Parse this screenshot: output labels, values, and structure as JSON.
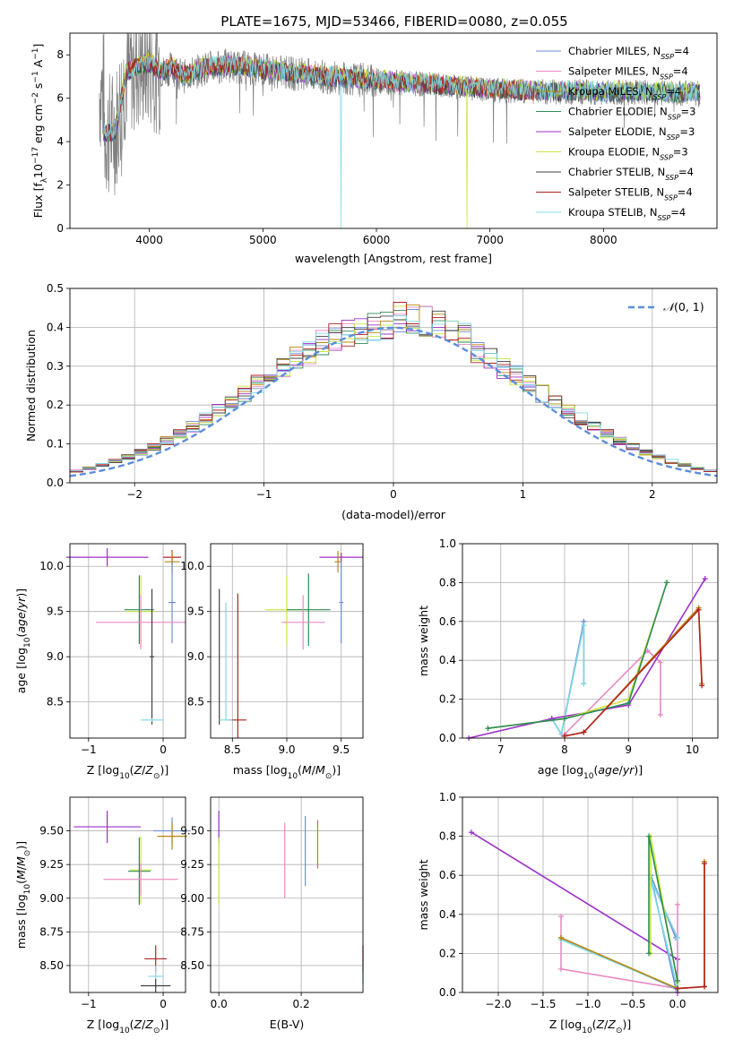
{
  "figure": {
    "title": "PLATE=1675, MJD=53466, FIBERID=0080, z=0.055"
  },
  "series_style": [
    {
      "name": "Chabrier MILES",
      "nssp": "4",
      "color": "#6b8fd6"
    },
    {
      "name": "Salpeter MILES",
      "nssp": "4",
      "color": "#e78ac3"
    },
    {
      "name": "Kroupa MILES",
      "nssp": "4",
      "color": "#b8860b"
    },
    {
      "name": "Chabrier ELODIE",
      "nssp": "3",
      "color": "#2e8b57"
    },
    {
      "name": "Salpeter ELODIE",
      "nssp": "3",
      "color": "#9b30c8"
    },
    {
      "name": "Kroupa ELODIE",
      "nssp": "3",
      "color": "#c8e63c"
    },
    {
      "name": "Chabrier STELIB",
      "nssp": "4",
      "color": "#404040"
    },
    {
      "name": "Salpeter STELIB",
      "nssp": "4",
      "color": "#b22222"
    },
    {
      "name": "Kroupa STELIB",
      "nssp": "4",
      "color": "#7fd8e6"
    }
  ],
  "chart_data": [
    {
      "id": "spectrum",
      "type": "line",
      "title": "PLATE=1675, MJD=53466, FIBERID=0080, z=0.055",
      "xlabel": "wavelength [Angstrom, rest frame]",
      "ylabel": "Flux [f_λ 10^-17 erg cm^-2 s^-1 A^-1]",
      "xlim": [
        3300,
        9000
      ],
      "ylim": [
        0,
        9
      ],
      "xticks": [
        4000,
        5000,
        6000,
        7000,
        8000
      ],
      "yticks": [
        0,
        2,
        4,
        6,
        8
      ],
      "grid": false,
      "legend_placement": "upper-right",
      "data_color": "#808080",
      "model_envelope": {
        "x": [
          3600,
          3700,
          3800,
          3900,
          4000,
          4100,
          4200,
          4300,
          4500,
          4700,
          5000,
          5500,
          6000,
          6500,
          7000,
          7400
        ],
        "y": [
          4.3,
          4.5,
          7.2,
          7.4,
          7.6,
          7.2,
          7.4,
          7.0,
          7.4,
          7.5,
          7.3,
          7.0,
          6.8,
          6.6,
          6.4,
          6.3
        ]
      }
    },
    {
      "id": "residuals",
      "type": "line",
      "xlabel": "(data-model)/error",
      "ylabel": "Normed distribution",
      "xlim": [
        -2.5,
        2.5
      ],
      "ylim": [
        0,
        0.5
      ],
      "xticks": [
        -2,
        -1,
        0,
        1,
        2
      ],
      "yticks": [
        0.0,
        0.1,
        0.2,
        0.3,
        0.4,
        0.5
      ],
      "grid": true,
      "legend_placement": "upper-right",
      "normal_label": "N(0,1)",
      "normal_color": "#5b8ddb"
    },
    {
      "id": "age_vs_Z",
      "type": "scatter",
      "xlabel": "Z [log10(Z/Z⊙)]",
      "ylabel": "age  [log10(age/yr)]",
      "xlim": [
        -1.25,
        0.3
      ],
      "ylim": [
        8.1,
        10.25
      ],
      "xticks": [
        -1,
        0
      ],
      "yticks": [
        8.5,
        9.0,
        9.5,
        10.0
      ],
      "grid": true,
      "points": [
        {
          "series": 4,
          "x": -0.75,
          "y": 10.1,
          "xerr": 0.55,
          "yerr": 0.1
        },
        {
          "series": 7,
          "x": 0.12,
          "y": 10.1,
          "xerr": 0.12,
          "yerr": 0.08
        },
        {
          "series": 2,
          "x": 0.12,
          "y": 10.05,
          "xerr": 0.1,
          "yerr": 0.12
        },
        {
          "series": 0,
          "x": 0.12,
          "y": 9.6,
          "xerr": 0.05,
          "yerr": 0.45
        },
        {
          "series": 5,
          "x": -0.3,
          "y": 9.5,
          "xerr": 0.2,
          "yerr": 0.4
        },
        {
          "series": 3,
          "x": -0.32,
          "y": 9.52,
          "xerr": 0.2,
          "yerr": 0.38
        },
        {
          "series": 1,
          "x": -0.3,
          "y": 9.38,
          "xerr": 0.6,
          "yerr": 0.3
        },
        {
          "series": 6,
          "x": -0.15,
          "y": 9.0,
          "xerr": 0.03,
          "yerr": 0.75
        },
        {
          "series": 8,
          "x": -0.15,
          "y": 8.3,
          "xerr": 0.15,
          "yerr": 0.02
        }
      ]
    },
    {
      "id": "age_vs_mass",
      "type": "scatter",
      "xlabel": "mass [log10(M/M⊙)]",
      "ylabel": "",
      "xlim": [
        8.3,
        9.7
      ],
      "ylim": [
        8.1,
        10.25
      ],
      "xticks": [
        8.5,
        9.0,
        9.5
      ],
      "yticks": [
        8.5,
        9.0,
        9.5,
        10.0
      ],
      "grid": true,
      "points": [
        {
          "series": 6,
          "x": 8.38,
          "y": 9.0,
          "xerr": 0.0,
          "yerr": 0.75
        },
        {
          "series": 8,
          "x": 8.44,
          "y": 8.95,
          "xerr": 0.0,
          "yerr": 0.65
        },
        {
          "series": 7,
          "x": 8.55,
          "y": 8.3,
          "xerr": 0.08,
          "yerr": 0.0
        },
        {
          "series": 8,
          "x": 8.44,
          "y": 8.3,
          "xerr": 0.06,
          "yerr": 0.0
        },
        {
          "series": 7,
          "x": 8.55,
          "y": 8.9,
          "xerr": 0.0,
          "yerr": 0.8
        },
        {
          "series": 5,
          "x": 9.0,
          "y": 9.52,
          "xerr": 0.2,
          "yerr": 0.38
        },
        {
          "series": 3,
          "x": 9.2,
          "y": 9.52,
          "xerr": 0.2,
          "yerr": 0.4
        },
        {
          "series": 1,
          "x": 9.15,
          "y": 9.38,
          "xerr": 0.2,
          "yerr": 0.3
        },
        {
          "series": 4,
          "x": 9.5,
          "y": 10.1,
          "xerr": 0.2,
          "yerr": 0.05
        },
        {
          "series": 0,
          "x": 9.5,
          "y": 9.6,
          "xerr": 0.02,
          "yerr": 0.45
        },
        {
          "series": 2,
          "x": 9.47,
          "y": 10.05,
          "xerr": 0.03,
          "yerr": 0.12
        }
      ]
    },
    {
      "id": "weight_vs_age",
      "type": "line",
      "xlabel": "age  [log10(age/yr)]",
      "ylabel": "mass weight",
      "xlim": [
        6.4,
        10.4
      ],
      "ylim": [
        0,
        1
      ],
      "xticks": [
        7,
        8,
        9,
        10
      ],
      "yticks": [
        0.0,
        0.2,
        0.4,
        0.6,
        0.8,
        1.0
      ],
      "grid": true,
      "lines": [
        {
          "series": 0,
          "x": [
            7.8,
            7.95,
            8.3,
            8.3
          ],
          "y": [
            0.1,
            0.02,
            0.6,
            0.28
          ]
        },
        {
          "series": 8,
          "x": [
            7.8,
            7.95,
            8.3,
            8.3
          ],
          "y": [
            0.1,
            0.02,
            0.58,
            0.28
          ]
        },
        {
          "series": 1,
          "x": [
            8.0,
            9.3,
            9.5,
            9.5
          ],
          "y": [
            0.02,
            0.45,
            0.39,
            0.12
          ]
        },
        {
          "series": 4,
          "x": [
            6.5,
            7.8,
            9.0,
            10.2
          ],
          "y": [
            0.0,
            0.1,
            0.17,
            0.82
          ]
        },
        {
          "series": 5,
          "x": [
            6.8,
            8.0,
            9.0,
            9.6
          ],
          "y": [
            0.05,
            0.1,
            0.2,
            0.8
          ]
        },
        {
          "series": 3,
          "x": [
            6.8,
            8.0,
            9.0,
            9.6
          ],
          "y": [
            0.05,
            0.1,
            0.18,
            0.8
          ]
        },
        {
          "series": 2,
          "x": [
            8.0,
            8.3,
            10.1,
            10.15
          ],
          "y": [
            0.01,
            0.03,
            0.67,
            0.28
          ]
        },
        {
          "series": 7,
          "x": [
            8.0,
            8.3,
            10.1,
            10.15
          ],
          "y": [
            0.01,
            0.03,
            0.66,
            0.27
          ]
        }
      ]
    },
    {
      "id": "mass_vs_Z",
      "type": "scatter",
      "xlabel": "Z [log10(Z/Z⊙)]",
      "ylabel": "mass [log10(M/M⊙)]",
      "xlim": [
        -1.25,
        0.3
      ],
      "ylim": [
        8.3,
        9.75
      ],
      "xticks": [
        -1,
        0
      ],
      "yticks": [
        8.5,
        8.75,
        9.0,
        9.25,
        9.5
      ],
      "grid": true,
      "points": [
        {
          "series": 4,
          "x": -0.75,
          "y": 9.53,
          "xerr": 0.45,
          "yerr": 0.12
        },
        {
          "series": 0,
          "x": 0.12,
          "y": 9.5,
          "xerr": 0.25,
          "yerr": 0.1
        },
        {
          "series": 2,
          "x": 0.12,
          "y": 9.46,
          "xerr": 0.2,
          "yerr": 0.1
        },
        {
          "series": 5,
          "x": -0.3,
          "y": 9.21,
          "xerr": 0.15,
          "yerr": 0.25
        },
        {
          "series": 3,
          "x": -0.32,
          "y": 9.2,
          "xerr": 0.15,
          "yerr": 0.25
        },
        {
          "series": 1,
          "x": -0.3,
          "y": 9.14,
          "xerr": 0.5,
          "yerr": 0.12
        },
        {
          "series": 7,
          "x": -0.1,
          "y": 8.55,
          "xerr": 0.15,
          "yerr": 0.1
        },
        {
          "series": 8,
          "x": -0.1,
          "y": 8.42,
          "xerr": 0.1,
          "yerr": 0.08
        },
        {
          "series": 6,
          "x": -0.1,
          "y": 8.35,
          "xerr": 0.2,
          "yerr": 0.05
        }
      ]
    },
    {
      "id": "mass_vs_ebv",
      "type": "scatter",
      "xlabel": "E(B-V)",
      "ylabel": "",
      "xlim": [
        -0.02,
        0.35
      ],
      "ylim": [
        8.3,
        9.75
      ],
      "xticks": [
        0.0,
        0.2
      ],
      "yticks": [
        8.5,
        8.75,
        9.0,
        9.25,
        9.5
      ],
      "grid": true,
      "points": [
        {
          "series": 4,
          "x": 0.0,
          "y": 9.53,
          "xerr": 0.0,
          "yerr": 0.12
        },
        {
          "series": 5,
          "x": 0.0,
          "y": 9.2,
          "xerr": 0.0,
          "yerr": 0.25
        },
        {
          "series": 1,
          "x": 0.16,
          "y": 9.28,
          "xerr": 0.0,
          "yerr": 0.28
        },
        {
          "series": 0,
          "x": 0.21,
          "y": 9.35,
          "xerr": 0.0,
          "yerr": 0.26
        },
        {
          "series": 2,
          "x": 0.24,
          "y": 9.4,
          "xerr": 0.0,
          "yerr": 0.18
        },
        {
          "series": 7,
          "x": 0.35,
          "y": 8.55,
          "xerr": 0.0,
          "yerr": 0.1
        },
        {
          "series": 8,
          "x": 0.35,
          "y": 8.45,
          "xerr": 0.0,
          "yerr": 0.08
        }
      ]
    },
    {
      "id": "weight_vs_Z",
      "type": "line",
      "xlabel": "Z [log10(Z/Z⊙)]",
      "ylabel": "mass weight",
      "xlim": [
        -2.4,
        0.45
      ],
      "ylim": [
        0,
        1
      ],
      "xticks": [
        -2.0,
        -1.5,
        -1.0,
        -0.5,
        0.0
      ],
      "yticks": [
        0.0,
        0.2,
        0.4,
        0.6,
        0.8,
        1.0
      ],
      "grid": true,
      "lines": [
        {
          "series": 4,
          "x": [
            -2.3,
            0.0,
            0.0
          ],
          "y": [
            0.82,
            0.17,
            0.0
          ]
        },
        {
          "series": 1,
          "x": [
            -1.3,
            -1.3,
            0.0,
            0.0
          ],
          "y": [
            0.39,
            0.12,
            0.02,
            0.45
          ]
        },
        {
          "series": 0,
          "x": [
            -1.3,
            -0.02,
            -0.3,
            -0.02
          ],
          "y": [
            0.28,
            0.02,
            0.6,
            0.28
          ]
        },
        {
          "series": 8,
          "x": [
            -1.3,
            0.0,
            -0.3,
            0.0
          ],
          "y": [
            0.27,
            0.02,
            0.58,
            0.28
          ]
        },
        {
          "series": 5,
          "x": [
            -0.3,
            -0.3,
            0.0
          ],
          "y": [
            0.2,
            0.8,
            0.05
          ]
        },
        {
          "series": 3,
          "x": [
            -0.32,
            -0.32,
            0.0
          ],
          "y": [
            0.2,
            0.8,
            0.06
          ]
        },
        {
          "series": 2,
          "x": [
            -1.3,
            0.0,
            0.3,
            0.3
          ],
          "y": [
            0.28,
            0.02,
            0.03,
            0.67
          ]
        },
        {
          "series": 7,
          "x": [
            0.0,
            0.3,
            0.3
          ],
          "y": [
            0.02,
            0.03,
            0.66
          ]
        }
      ]
    }
  ]
}
